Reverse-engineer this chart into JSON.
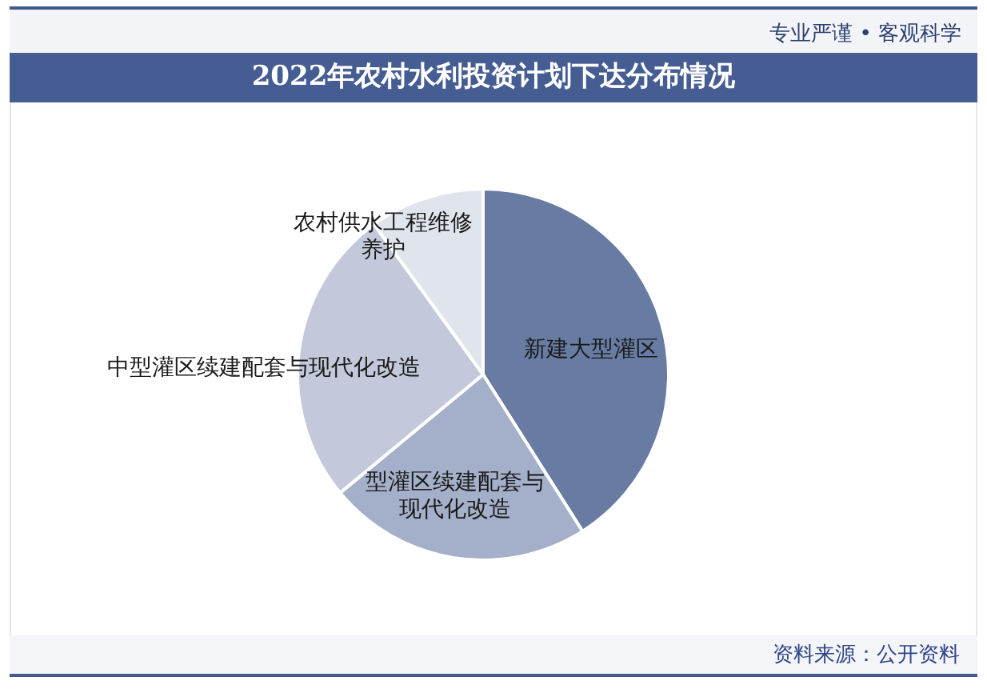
{
  "chart_data": {
    "type": "pie",
    "title": "2022年农村水利投资计划下达分布情况",
    "categories": [
      "新建大型灌区",
      "型灌区续建配套与现代化改造",
      "中型灌区续建配套与现代化改造",
      "农村供水工程维修养护"
    ],
    "values": [
      41,
      23,
      26,
      10
    ],
    "colors": [
      "#687ca3",
      "#a4b0c9",
      "#c3c9da",
      "#e0e4ed"
    ],
    "annotations": [
      "专业严谨 • 客观科学",
      "资料来源：公开资料"
    ]
  }
}
